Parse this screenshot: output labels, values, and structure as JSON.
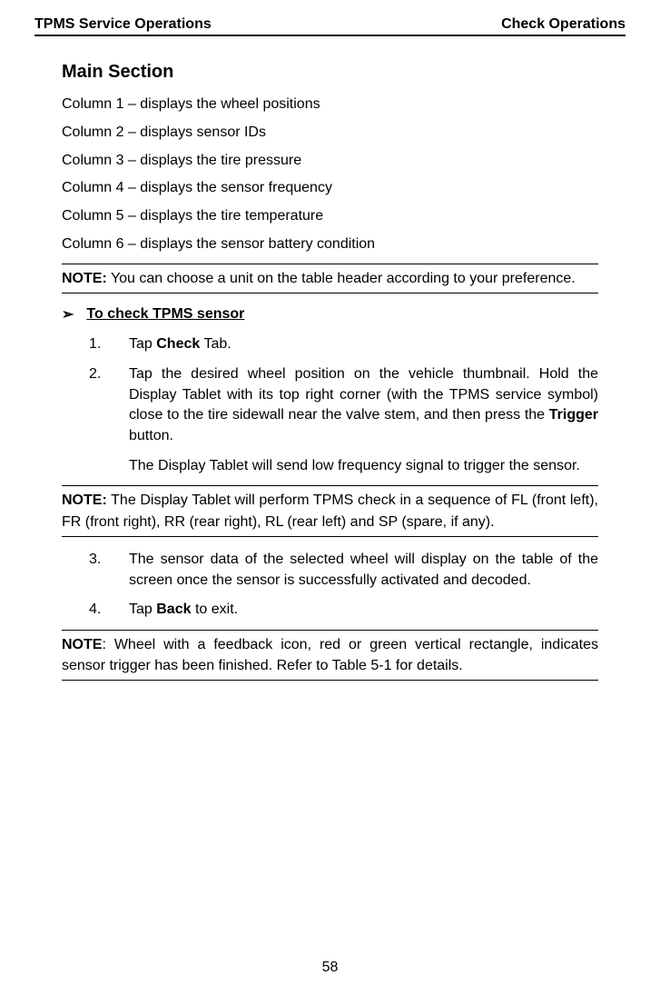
{
  "header": {
    "left": "TPMS Service Operations",
    "right": "Check Operations"
  },
  "main": {
    "heading": "Main Section",
    "columns": [
      "Column 1 – displays the wheel positions",
      "Column 2 – displays sensor IDs",
      "Column 3 – displays the tire pressure",
      "Column 4 – displays the sensor frequency",
      "Column 5 – displays the tire temperature",
      "Column 6 – displays the sensor battery condition"
    ]
  },
  "note1": {
    "label": "NOTE:",
    "text": " You can choose a unit on the table header according to your preference."
  },
  "procedure": {
    "arrow": "➢",
    "title": "To check TPMS sensor",
    "step1": {
      "num": "1.",
      "pre": "Tap ",
      "bold": "Check",
      "post": " Tab."
    },
    "step2": {
      "num": "2.",
      "pre": "Tap the desired wheel position on the vehicle thumbnail. Hold the Display Tablet with its top right corner (with the TPMS service symbol) close to the tire sidewall near the valve stem, and then press the ",
      "bold": "Trigger",
      "post": " button.",
      "sub": "The Display Tablet will send low frequency signal to trigger the sensor."
    },
    "step3": {
      "num": "3.",
      "text": "The sensor data of the selected wheel will display on the table of the screen once the sensor is successfully activated and decoded."
    },
    "step4": {
      "num": "4.",
      "pre": "Tap ",
      "bold": "Back",
      "post": " to exit."
    }
  },
  "note2": {
    "label": "NOTE:",
    "text": " The Display Tablet will perform TPMS check in a sequence of FL (front left), FR (front right), RR (rear right), RL (rear left) and SP (spare, if any)."
  },
  "note3": {
    "label": "NOTE",
    "text": ": Wheel with a feedback icon, red or green vertical rectangle, indicates sensor trigger has been finished. Refer to Table 5-1 for details."
  },
  "pageNumber": "58"
}
